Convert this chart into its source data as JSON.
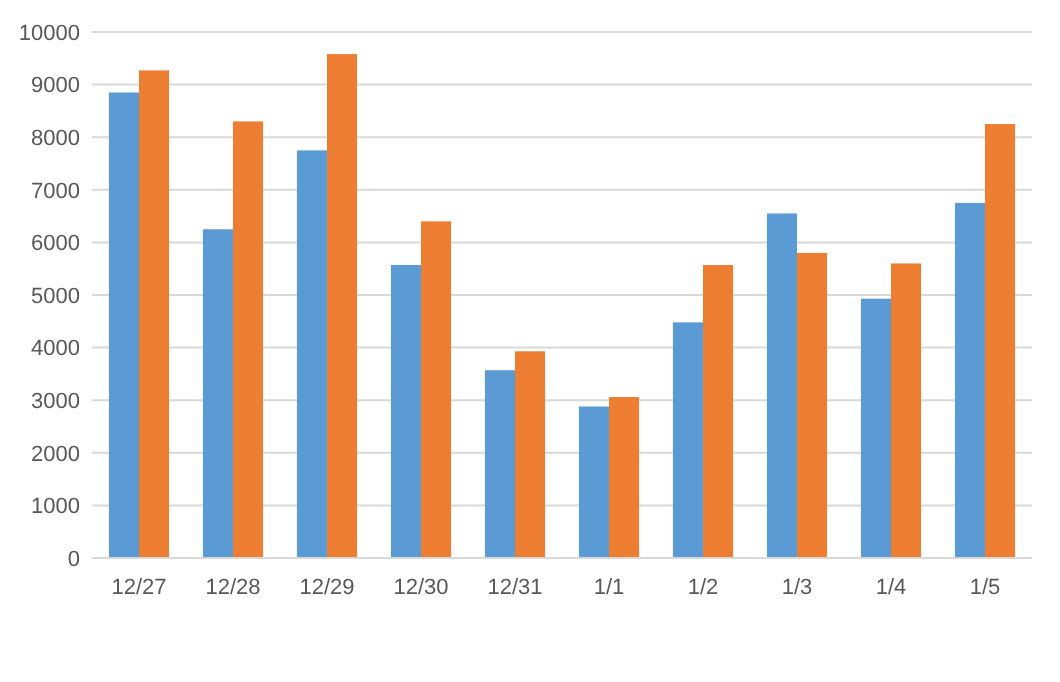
{
  "chart_data": {
    "type": "bar",
    "categories": [
      "12/27",
      "12/28",
      "12/29",
      "12/30",
      "12/31",
      "1/1",
      "1/2",
      "1/3",
      "1/4",
      "1/5"
    ],
    "series": [
      {
        "color": "#5b9bd5",
        "values": [
          8850,
          6250,
          7750,
          5570,
          3570,
          2880,
          4480,
          6550,
          4930,
          6750
        ]
      },
      {
        "color": "#ed7d31",
        "values": [
          9270,
          8300,
          9580,
          6400,
          3930,
          3060,
          5570,
          5800,
          5600,
          8250
        ]
      }
    ],
    "ylim": [
      0,
      10000
    ],
    "yticks": [
      0,
      1000,
      2000,
      3000,
      4000,
      5000,
      6000,
      7000,
      8000,
      9000,
      10000
    ],
    "grid": "y"
  }
}
